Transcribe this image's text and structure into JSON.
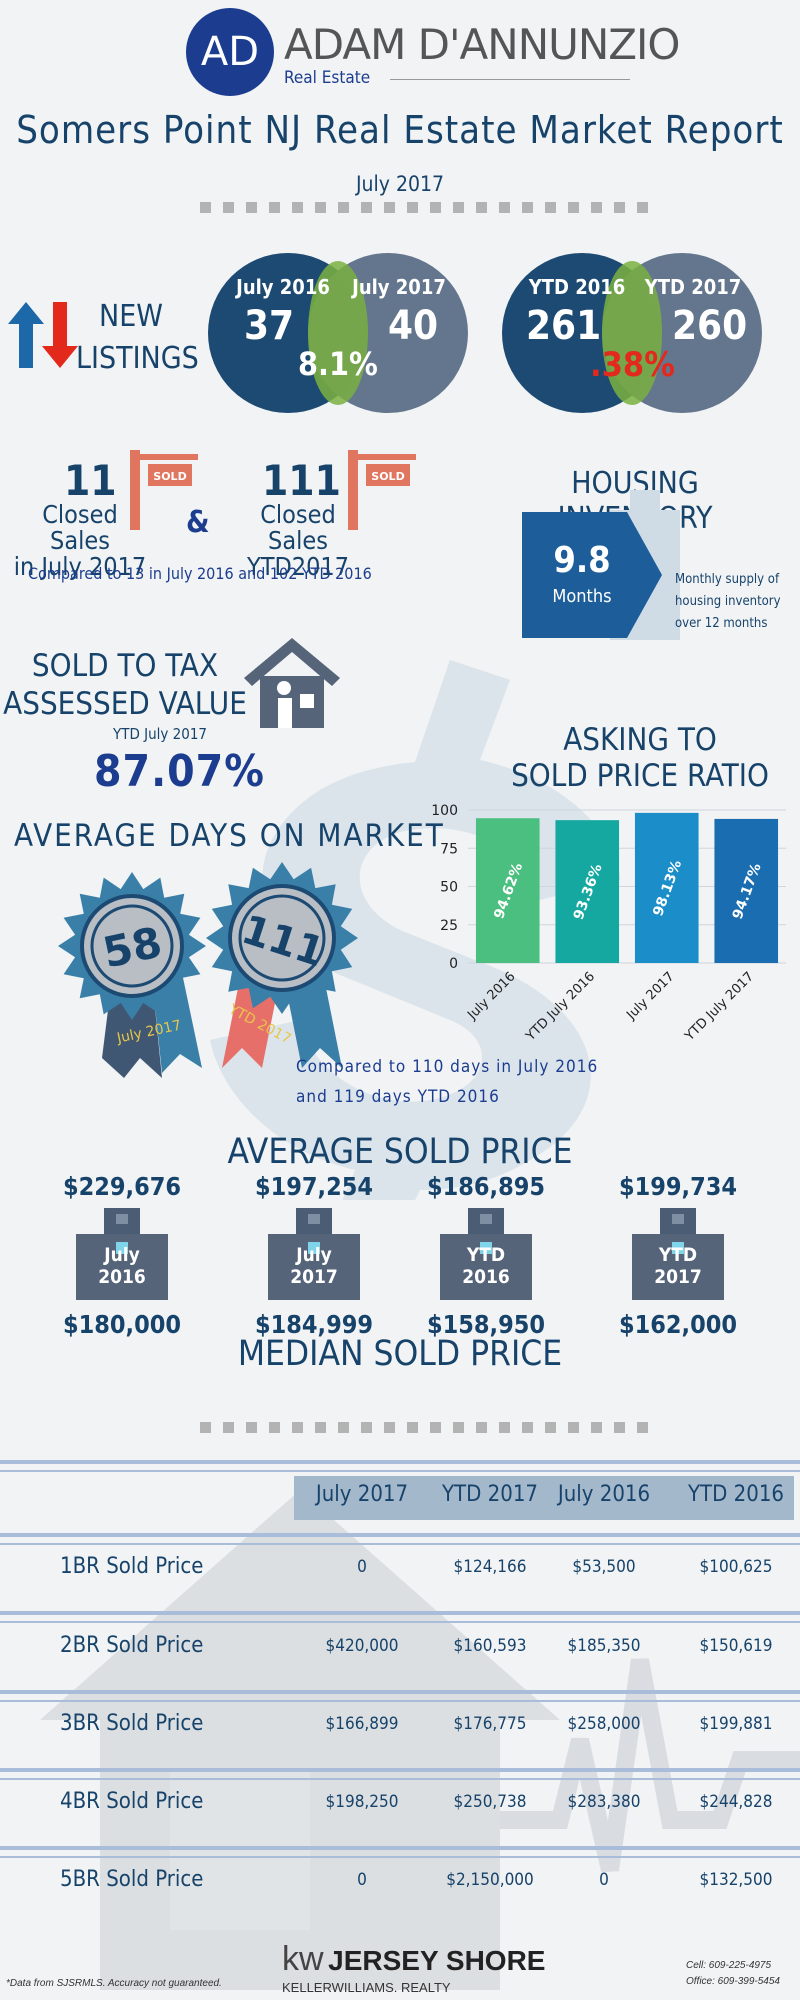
{
  "brand": {
    "logo_initials": "AD",
    "name": "ADAM D'ANNUNZIO",
    "subtitle": "Real Estate"
  },
  "report": {
    "title": "Somers Point NJ Real Estate Market Report",
    "period": "July 2017"
  },
  "new_listings": {
    "label_line1": "NEW",
    "label_line2": "LISTINGS",
    "monthly": {
      "left_label": "July 2016",
      "left_value": "37",
      "right_label": "July 2017",
      "right_value": "40",
      "change": "8.1%"
    },
    "ytd": {
      "left_label": "YTD 2016",
      "left_value": "261",
      "right_label": "YTD 2017",
      "right_value": "260",
      "change": ".38%"
    }
  },
  "closed_sales": {
    "month_value": "11",
    "month_label_line1": "Closed Sales",
    "month_label_line2": "in July 2017",
    "amp": "&",
    "ytd_value": "111",
    "ytd_label_line1": "Closed Sales",
    "ytd_label_line2": "YTD2017",
    "sign_text": "SOLD",
    "comparison": "Compared to 13 in July 2016 and 102 YTD 2016"
  },
  "housing_inventory": {
    "title": "HOUSING INVENTORY",
    "value": "9.8",
    "unit": "Months",
    "note_line1": "Monthly supply of",
    "note_line2": "housing inventory",
    "note_line3": "over 12 months"
  },
  "tax_assessed": {
    "title_line1": "SOLD TO TAX",
    "title_line2": "ASSESSED VALUE",
    "subtitle": "YTD July 2017",
    "value": "87.07%"
  },
  "asking_ratio": {
    "title_line1": "ASKING TO",
    "title_line2": "SOLD PRICE RATIO"
  },
  "chart_data": {
    "type": "bar",
    "categories": [
      "July 2016",
      "YTD July 2016",
      "July 2017",
      "YTD July 2017"
    ],
    "values": [
      94.62,
      93.36,
      98.13,
      94.17
    ],
    "data_labels": [
      "94.62%",
      "93.36%",
      "98.13%",
      "94.17%"
    ],
    "colors": [
      "#4bbf7f",
      "#15a8a0",
      "#1b8ec9",
      "#1a6db0"
    ],
    "yticks": [
      "100",
      "75",
      "50",
      "25",
      "0"
    ],
    "ylim": [
      0,
      100
    ],
    "grid": true,
    "title": "",
    "xlabel": "",
    "ylabel": ""
  },
  "days_on_market": {
    "title": "AVERAGE DAYS ON MARKET",
    "badge1_value": "58",
    "badge1_label": "July 2017",
    "badge2_value": "111",
    "badge2_label": "YTD 2017",
    "comparison_line1": "Compared to 110 days in July 2016",
    "comparison_line2": "and 119 days YTD 2016"
  },
  "sold_price": {
    "avg_title": "AVERAGE SOLD PRICE",
    "median_title": "MEDIAN SOLD PRICE",
    "items": [
      {
        "avg": "$229,676",
        "line1": "July",
        "line2": "2016",
        "median": "$180,000"
      },
      {
        "avg": "$197,254",
        "line1": "July",
        "line2": "2017",
        "median": "$184,999"
      },
      {
        "avg": "$186,895",
        "line1": "YTD",
        "line2": "2016",
        "median": "$158,950"
      },
      {
        "avg": "$199,734",
        "line1": "YTD",
        "line2": "2017",
        "median": "$162,000"
      }
    ]
  },
  "bedroom_table": {
    "headers": [
      "July 2017",
      "YTD 2017",
      "July 2016",
      "YTD 2016"
    ],
    "rows": [
      {
        "label": "1BR Sold Price",
        "values": [
          "0",
          "$124,166",
          "$53,500",
          "$100,625"
        ]
      },
      {
        "label": "2BR Sold Price",
        "values": [
          "$420,000",
          "$160,593",
          "$185,350",
          "$150,619"
        ]
      },
      {
        "label": "3BR Sold Price",
        "values": [
          "$166,899",
          "$176,775",
          "$258,000",
          "$199,881"
        ]
      },
      {
        "label": "4BR Sold Price",
        "values": [
          "$198,250",
          "$250,738",
          "$283,380",
          "$244,828"
        ]
      },
      {
        "label": "5BR Sold Price",
        "values": [
          "0",
          "$2,150,000",
          "0",
          "$132,500"
        ]
      }
    ]
  },
  "footer": {
    "disclaimer": "*Data from SJSRMLS.  Accuracy not guaranteed.",
    "kw_mark": "kw",
    "office_name": "JERSEY SHORE",
    "company": "KELLERWILLIAMS. REALTY",
    "cell": "Cell: 609-225-4975",
    "office": "Office: 609-399-5454"
  },
  "colors": {
    "navy": "#17436b",
    "circle_dark": "#1c4a72",
    "circle_grey": "#5c6f87",
    "overlap_green": "#7ab041",
    "red": "#e2291c",
    "sign_red": "#e07560",
    "background": "#f1f3f4"
  },
  "icons": {
    "arrows": "up-down-arrows-icon",
    "sold_sign": "sold-sign-icon",
    "house": "house-icon",
    "building": "building-icon",
    "badge": "rosette-badge-icon"
  }
}
